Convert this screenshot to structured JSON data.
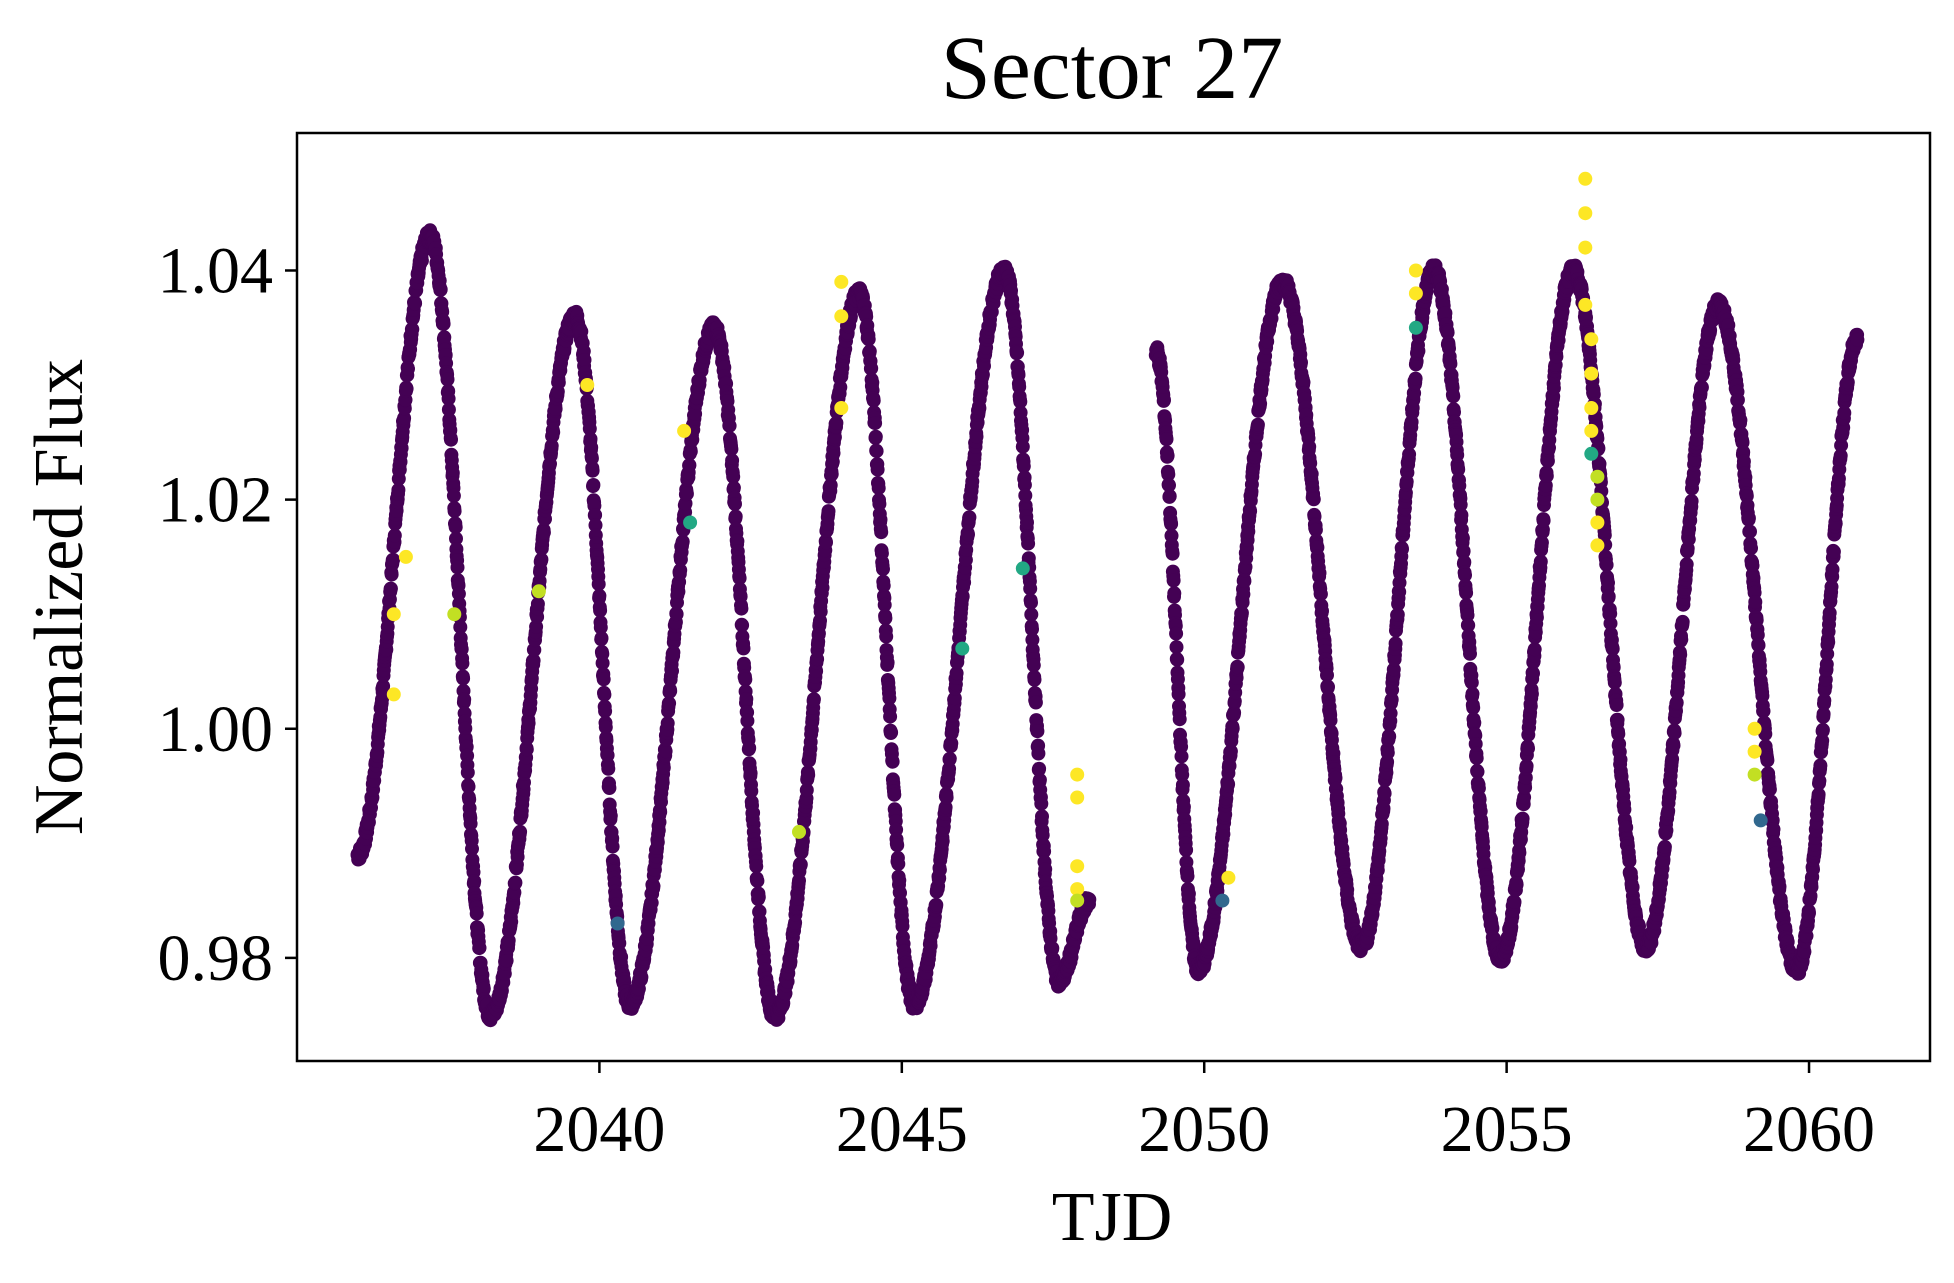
{
  "chart_data": {
    "type": "scatter",
    "title": "Sector 27",
    "xlabel": "TJD",
    "ylabel": "Normalized Flux",
    "xlim": [
      2035.0,
      2062.0
    ],
    "ylim": [
      0.971,
      1.052
    ],
    "xticks": [
      2040,
      2045,
      2050,
      2055,
      2060
    ],
    "xtick_labels": [
      "2040",
      "2045",
      "2050",
      "2055",
      "2060"
    ],
    "yticks": [
      0.98,
      1.0,
      1.02,
      1.04
    ],
    "ytick_labels": [
      "0.98",
      "1.00",
      "1.02",
      "1.04"
    ],
    "grid": false,
    "colormap": "viridis",
    "base_color": "#440154",
    "outlier_colors": [
      "#fde725",
      "#c2df23",
      "#22a884",
      "#31688e"
    ],
    "segments": [
      {
        "x_start": 2036.0,
        "x_end": 2048.1
      },
      {
        "x_start": 2049.2,
        "x_end": 2060.8
      }
    ],
    "minima": [
      {
        "x": 2036.0,
        "y": 0.989
      },
      {
        "x": 2038.2,
        "y": 0.975
      },
      {
        "x": 2040.5,
        "y": 0.976
      },
      {
        "x": 2042.9,
        "y": 0.975
      },
      {
        "x": 2045.2,
        "y": 0.976
      },
      {
        "x": 2047.6,
        "y": 0.978
      },
      {
        "x": 2049.9,
        "y": 0.979
      },
      {
        "x": 2052.6,
        "y": 0.981
      },
      {
        "x": 2054.9,
        "y": 0.98
      },
      {
        "x": 2057.3,
        "y": 0.981
      },
      {
        "x": 2059.8,
        "y": 0.979
      }
    ],
    "maxima": [
      {
        "x": 2037.2,
        "y": 1.043
      },
      {
        "x": 2039.6,
        "y": 1.036
      },
      {
        "x": 2041.9,
        "y": 1.035
      },
      {
        "x": 2044.3,
        "y": 1.038
      },
      {
        "x": 2046.7,
        "y": 1.04
      },
      {
        "x": 2051.3,
        "y": 1.039
      },
      {
        "x": 2053.8,
        "y": 1.04
      },
      {
        "x": 2056.1,
        "y": 1.04
      },
      {
        "x": 2058.5,
        "y": 1.037
      }
    ],
    "segment_edges": [
      {
        "x": 2036.0,
        "y": 0.989
      },
      {
        "x": 2048.1,
        "y": 0.985
      },
      {
        "x": 2049.2,
        "y": 1.033
      },
      {
        "x": 2060.8,
        "y": 1.034
      }
    ],
    "outliers": [
      {
        "x": 2036.6,
        "y": 1.01,
        "c": 0
      },
      {
        "x": 2036.6,
        "y": 1.003,
        "c": 0
      },
      {
        "x": 2036.8,
        "y": 1.015,
        "c": 0
      },
      {
        "x": 2037.6,
        "y": 1.01,
        "c": 1
      },
      {
        "x": 2039.0,
        "y": 1.012,
        "c": 1
      },
      {
        "x": 2039.8,
        "y": 1.03,
        "c": 0
      },
      {
        "x": 2040.3,
        "y": 0.983,
        "c": 3
      },
      {
        "x": 2041.4,
        "y": 1.026,
        "c": 0
      },
      {
        "x": 2041.5,
        "y": 1.018,
        "c": 2
      },
      {
        "x": 2043.3,
        "y": 0.991,
        "c": 1
      },
      {
        "x": 2044.0,
        "y": 1.039,
        "c": 0
      },
      {
        "x": 2044.0,
        "y": 1.036,
        "c": 0
      },
      {
        "x": 2044.0,
        "y": 1.028,
        "c": 0
      },
      {
        "x": 2046.0,
        "y": 1.007,
        "c": 2
      },
      {
        "x": 2047.0,
        "y": 1.014,
        "c": 2
      },
      {
        "x": 2047.9,
        "y": 0.996,
        "c": 0
      },
      {
        "x": 2047.9,
        "y": 0.994,
        "c": 0
      },
      {
        "x": 2047.9,
        "y": 0.988,
        "c": 0
      },
      {
        "x": 2047.9,
        "y": 0.986,
        "c": 0
      },
      {
        "x": 2047.9,
        "y": 0.985,
        "c": 1
      },
      {
        "x": 2050.3,
        "y": 0.985,
        "c": 3
      },
      {
        "x": 2050.4,
        "y": 0.987,
        "c": 0
      },
      {
        "x": 2053.5,
        "y": 1.04,
        "c": 0
      },
      {
        "x": 2053.5,
        "y": 1.038,
        "c": 0
      },
      {
        "x": 2053.5,
        "y": 1.035,
        "c": 2
      },
      {
        "x": 2056.3,
        "y": 1.048,
        "c": 0
      },
      {
        "x": 2056.3,
        "y": 1.045,
        "c": 0
      },
      {
        "x": 2056.3,
        "y": 1.042,
        "c": 0
      },
      {
        "x": 2056.3,
        "y": 1.037,
        "c": 0
      },
      {
        "x": 2056.4,
        "y": 1.034,
        "c": 0
      },
      {
        "x": 2056.4,
        "y": 1.031,
        "c": 0
      },
      {
        "x": 2056.4,
        "y": 1.028,
        "c": 0
      },
      {
        "x": 2056.4,
        "y": 1.026,
        "c": 0
      },
      {
        "x": 2056.4,
        "y": 1.024,
        "c": 2
      },
      {
        "x": 2056.5,
        "y": 1.022,
        "c": 1
      },
      {
        "x": 2056.5,
        "y": 1.02,
        "c": 1
      },
      {
        "x": 2056.5,
        "y": 1.018,
        "c": 0
      },
      {
        "x": 2056.5,
        "y": 1.016,
        "c": 0
      },
      {
        "x": 2059.1,
        "y": 1.0,
        "c": 0
      },
      {
        "x": 2059.1,
        "y": 0.998,
        "c": 0
      },
      {
        "x": 2059.1,
        "y": 0.996,
        "c": 1
      },
      {
        "x": 2059.2,
        "y": 0.992,
        "c": 3
      }
    ]
  }
}
